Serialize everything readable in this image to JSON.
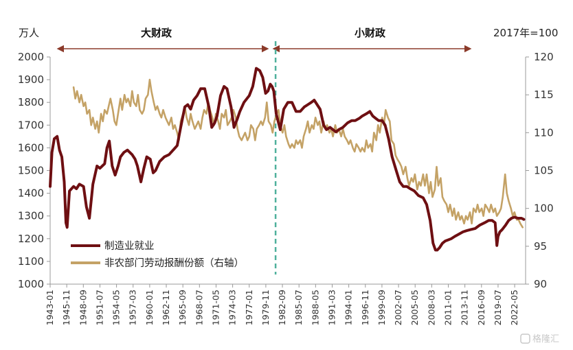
{
  "chart_data": {
    "type": "line",
    "left_unit": "万人",
    "right_unit": "2017年=100",
    "y_left": {
      "min": 1000,
      "max": 2000,
      "ticks": [
        "1000",
        "1100",
        "1200",
        "1300",
        "1400",
        "1500",
        "1600",
        "1700",
        "1800",
        "1900",
        "2000"
      ]
    },
    "y_right": {
      "min": 90,
      "max": 120,
      "ticks": [
        "90",
        "95",
        "100",
        "105",
        "110",
        "115",
        "120"
      ]
    },
    "x_ticks": [
      "1943-01",
      "1945-11",
      "1948-09",
      "1951-07",
      "1954-05",
      "1957-03",
      "1960-01",
      "1962-11",
      "1965-09",
      "1968-07",
      "1971-05",
      "1974-03",
      "1977-01",
      "1979-11",
      "1982-09",
      "1985-07",
      "1988-05",
      "1991-03",
      "1994-01",
      "1996-11",
      "1999-09",
      "2002-07",
      "2005-05",
      "2008-03",
      "2011-01",
      "2013-11",
      "2016-09",
      "2019-07",
      "2022-05"
    ],
    "annotations": {
      "big": "大财政",
      "small": "小财政",
      "divider_date": 1981.5
    },
    "series": [
      {
        "name": "制造业就业",
        "axis": "left",
        "color": "#6e0f12",
        "x": [
          1943.0,
          1943.3,
          1943.7,
          1944.2,
          1944.6,
          1945.0,
          1945.4,
          1945.7,
          1945.9,
          1946.3,
          1947.0,
          1947.5,
          1948.0,
          1948.7,
          1949.2,
          1949.7,
          1950.3,
          1951.0,
          1951.5,
          1952.3,
          1952.7,
          1953.1,
          1953.6,
          1954.1,
          1954.6,
          1955.0,
          1955.6,
          1956.2,
          1957.0,
          1957.5,
          1957.9,
          1958.5,
          1959.0,
          1959.5,
          1960.1,
          1960.6,
          1961.0,
          1961.7,
          1962.5,
          1963.3,
          1964.0,
          1964.7,
          1965.3,
          1966.0,
          1966.5,
          1967.0,
          1967.5,
          1968.1,
          1968.7,
          1969.4,
          1970.1,
          1970.6,
          1971.1,
          1971.5,
          1972.1,
          1972.7,
          1973.2,
          1973.9,
          1974.4,
          1975.0,
          1975.4,
          1976.1,
          1977.0,
          1977.6,
          1978.2,
          1978.8,
          1979.3,
          1979.8,
          1980.2,
          1980.6,
          1980.9,
          1981.2,
          1981.6,
          1982.3,
          1982.9,
          1983.6,
          1984.3,
          1985.0,
          1985.7,
          1986.4,
          1987.0,
          1987.6,
          1988.1,
          1988.6,
          1989.1,
          1989.7,
          1990.2,
          1990.8,
          1991.3,
          1991.8,
          1992.3,
          1993.0,
          1993.8,
          1994.5,
          1995.1,
          1995.8,
          1996.3,
          1997.0,
          1997.6,
          1998.1,
          1998.6,
          1999.1,
          1999.7,
          2000.2,
          2000.8,
          2001.4,
          2002.1,
          2002.7,
          2003.3,
          2003.9,
          2004.5,
          2005.2,
          2005.9,
          2006.7,
          2007.3,
          2007.9,
          2008.4,
          2008.8,
          2009.1,
          2009.5,
          2010.0,
          2010.5,
          2011.0,
          2011.5,
          2012.1,
          2012.8,
          2013.5,
          2014.1,
          2014.8,
          2015.6,
          2016.4,
          2017.2,
          2017.9,
          2018.5,
          2019.0,
          2019.3,
          2019.5,
          2019.8,
          2020.2,
          2020.8,
          2021.3,
          2021.8,
          2022.3,
          2022.9,
          2023.5,
          2023.9
        ],
        "values": [
          1430,
          1580,
          1640,
          1650,
          1590,
          1560,
          1450,
          1270,
          1250,
          1410,
          1430,
          1420,
          1440,
          1430,
          1340,
          1290,
          1440,
          1520,
          1510,
          1530,
          1600,
          1630,
          1520,
          1480,
          1520,
          1560,
          1580,
          1590,
          1570,
          1550,
          1520,
          1450,
          1510,
          1560,
          1550,
          1490,
          1500,
          1540,
          1560,
          1570,
          1590,
          1610,
          1690,
          1780,
          1790,
          1770,
          1810,
          1830,
          1860,
          1860,
          1780,
          1690,
          1710,
          1740,
          1830,
          1870,
          1860,
          1780,
          1690,
          1730,
          1760,
          1800,
          1830,
          1870,
          1950,
          1940,
          1910,
          1840,
          1850,
          1880,
          1870,
          1850,
          1750,
          1680,
          1770,
          1800,
          1800,
          1760,
          1760,
          1780,
          1790,
          1800,
          1810,
          1790,
          1770,
          1700,
          1680,
          1690,
          1680,
          1670,
          1680,
          1690,
          1710,
          1720,
          1720,
          1730,
          1740,
          1750,
          1760,
          1740,
          1730,
          1720,
          1720,
          1700,
          1640,
          1560,
          1500,
          1450,
          1430,
          1430,
          1420,
          1410,
          1390,
          1380,
          1350,
          1280,
          1180,
          1150,
          1150,
          1160,
          1180,
          1190,
          1195,
          1200,
          1210,
          1220,
          1230,
          1235,
          1240,
          1245,
          1260,
          1270,
          1280,
          1280,
          1270,
          1170,
          1210,
          1230,
          1240,
          1260,
          1280,
          1290,
          1295,
          1290,
          1290,
          1285
        ]
      },
      {
        "name": "非农部门劳动报酬份额（右轴）",
        "axis": "right",
        "color": "#c4a266",
        "x": [
          1947.0,
          1947.3,
          1947.6,
          1948.0,
          1948.3,
          1948.7,
          1949.0,
          1949.3,
          1949.7,
          1950.0,
          1950.3,
          1950.7,
          1951.0,
          1951.3,
          1951.7,
          1952.0,
          1952.3,
          1952.7,
          1953.0,
          1953.3,
          1953.7,
          1954.0,
          1954.3,
          1954.7,
          1955.0,
          1955.3,
          1955.7,
          1956.0,
          1956.3,
          1956.7,
          1957.0,
          1957.3,
          1957.7,
          1958.0,
          1958.3,
          1958.7,
          1959.0,
          1959.3,
          1959.7,
          1960.0,
          1960.3,
          1960.7,
          1961.0,
          1961.3,
          1961.7,
          1962.0,
          1962.3,
          1962.7,
          1963.0,
          1963.3,
          1963.7,
          1964.0,
          1964.3,
          1964.7,
          1965.0,
          1965.3,
          1965.7,
          1966.0,
          1966.3,
          1966.7,
          1967.0,
          1967.3,
          1967.7,
          1968.0,
          1968.3,
          1968.7,
          1969.0,
          1969.3,
          1969.7,
          1970.0,
          1970.3,
          1970.7,
          1971.0,
          1971.3,
          1971.7,
          1972.0,
          1972.3,
          1972.7,
          1973.0,
          1973.3,
          1973.7,
          1974.0,
          1974.3,
          1974.7,
          1975.0,
          1975.3,
          1975.7,
          1976.0,
          1976.3,
          1976.7,
          1977.0,
          1977.3,
          1977.7,
          1978.0,
          1978.3,
          1978.7,
          1979.0,
          1979.3,
          1979.7,
          1980.0,
          1980.3,
          1980.7,
          1981.0,
          1981.3,
          1981.7,
          1982.0,
          1982.3,
          1982.7,
          1983.0,
          1983.3,
          1983.7,
          1984.0,
          1984.3,
          1984.7,
          1985.0,
          1985.3,
          1985.7,
          1986.0,
          1986.3,
          1986.7,
          1987.0,
          1987.3,
          1987.7,
          1988.0,
          1988.3,
          1988.7,
          1989.0,
          1989.3,
          1989.7,
          1990.0,
          1990.3,
          1990.7,
          1991.0,
          1991.3,
          1991.7,
          1992.0,
          1992.3,
          1992.7,
          1993.0,
          1993.3,
          1993.7,
          1994.0,
          1994.3,
          1994.7,
          1995.0,
          1995.3,
          1995.7,
          1996.0,
          1996.3,
          1996.7,
          1997.0,
          1997.3,
          1997.7,
          1998.0,
          1998.3,
          1998.7,
          1999.0,
          1999.3,
          1999.7,
          2000.0,
          2000.3,
          2000.7,
          2001.0,
          2001.3,
          2001.7,
          2002.0,
          2002.3,
          2002.7,
          2003.0,
          2003.3,
          2003.7,
          2004.0,
          2004.3,
          2004.7,
          2005.0,
          2005.3,
          2005.7,
          2006.0,
          2006.3,
          2006.7,
          2007.0,
          2007.3,
          2007.7,
          2008.0,
          2008.3,
          2008.7,
          2009.0,
          2009.3,
          2009.7,
          2010.0,
          2010.3,
          2010.7,
          2011.0,
          2011.3,
          2011.7,
          2012.0,
          2012.3,
          2012.7,
          2013.0,
          2013.3,
          2013.7,
          2014.0,
          2014.3,
          2014.7,
          2015.0,
          2015.3,
          2015.7,
          2016.0,
          2016.3,
          2016.7,
          2017.0,
          2017.3,
          2017.7,
          2018.0,
          2018.3,
          2018.7,
          2019.0,
          2019.3,
          2019.7,
          2020.0,
          2020.3,
          2020.7,
          2021.0,
          2021.3,
          2021.7,
          2022.0,
          2022.3,
          2022.7,
          2023.0,
          2023.3,
          2023.7
        ],
        "values": [
          116.0,
          114.5,
          115.5,
          114.0,
          115.0,
          113.5,
          114.0,
          112.5,
          113.0,
          111.0,
          112.0,
          110.5,
          111.5,
          110.0,
          112.5,
          111.5,
          113.0,
          112.5,
          113.5,
          114.5,
          113.0,
          111.5,
          111.0,
          113.0,
          114.5,
          113.0,
          115.0,
          114.0,
          114.5,
          113.5,
          115.5,
          114.0,
          113.5,
          115.0,
          113.0,
          112.5,
          113.0,
          114.5,
          115.0,
          117.0,
          115.5,
          114.0,
          113.0,
          113.5,
          112.5,
          112.0,
          113.0,
          112.0,
          111.5,
          111.0,
          112.0,
          110.5,
          111.0,
          110.0,
          109.0,
          111.5,
          112.5,
          113.5,
          112.0,
          111.0,
          112.5,
          111.5,
          110.5,
          111.0,
          111.5,
          110.5,
          112.0,
          113.0,
          112.5,
          114.0,
          113.0,
          112.0,
          111.0,
          112.5,
          111.5,
          110.5,
          112.5,
          112.0,
          113.0,
          111.0,
          111.5,
          112.0,
          113.0,
          112.0,
          110.5,
          109.5,
          109.0,
          109.5,
          110.0,
          109.0,
          109.5,
          111.0,
          110.5,
          109.0,
          110.5,
          111.0,
          111.5,
          111.0,
          112.0,
          114.0,
          111.5,
          111.0,
          110.0,
          111.5,
          112.5,
          113.0,
          111.0,
          110.0,
          111.0,
          109.5,
          108.5,
          108.0,
          108.5,
          108.0,
          109.0,
          108.5,
          109.0,
          108.0,
          109.5,
          110.5,
          111.5,
          110.0,
          111.0,
          110.5,
          112.0,
          111.0,
          111.5,
          110.0,
          111.5,
          110.5,
          111.0,
          110.0,
          110.5,
          109.5,
          111.0,
          110.0,
          110.5,
          109.5,
          110.5,
          109.5,
          109.0,
          108.5,
          109.0,
          108.0,
          107.5,
          108.5,
          108.0,
          107.5,
          108.0,
          107.5,
          109.0,
          108.0,
          108.5,
          107.5,
          110.0,
          109.0,
          111.0,
          110.0,
          112.0,
          111.0,
          113.0,
          112.0,
          111.5,
          109.0,
          108.5,
          107.0,
          106.5,
          106.0,
          105.5,
          104.5,
          105.5,
          104.0,
          103.0,
          104.0,
          103.5,
          104.5,
          102.5,
          103.5,
          103.0,
          104.5,
          103.0,
          104.5,
          102.0,
          103.5,
          101.5,
          102.5,
          105.5,
          103.0,
          104.0,
          101.5,
          101.0,
          100.5,
          99.5,
          100.5,
          99.0,
          100.0,
          98.5,
          99.5,
          98.5,
          99.0,
          98.0,
          99.0,
          98.5,
          99.5,
          98.0,
          100.0,
          99.5,
          100.5,
          99.5,
          100.0,
          99.0,
          100.5,
          100.0,
          99.5,
          100.5,
          99.5,
          100.0,
          99.0,
          99.5,
          100.0,
          101.5,
          104.5,
          102.0,
          101.0,
          100.0,
          99.0,
          99.5,
          98.5,
          98.5,
          98.0,
          97.5
        ]
      }
    ]
  },
  "watermark": "格隆汇"
}
